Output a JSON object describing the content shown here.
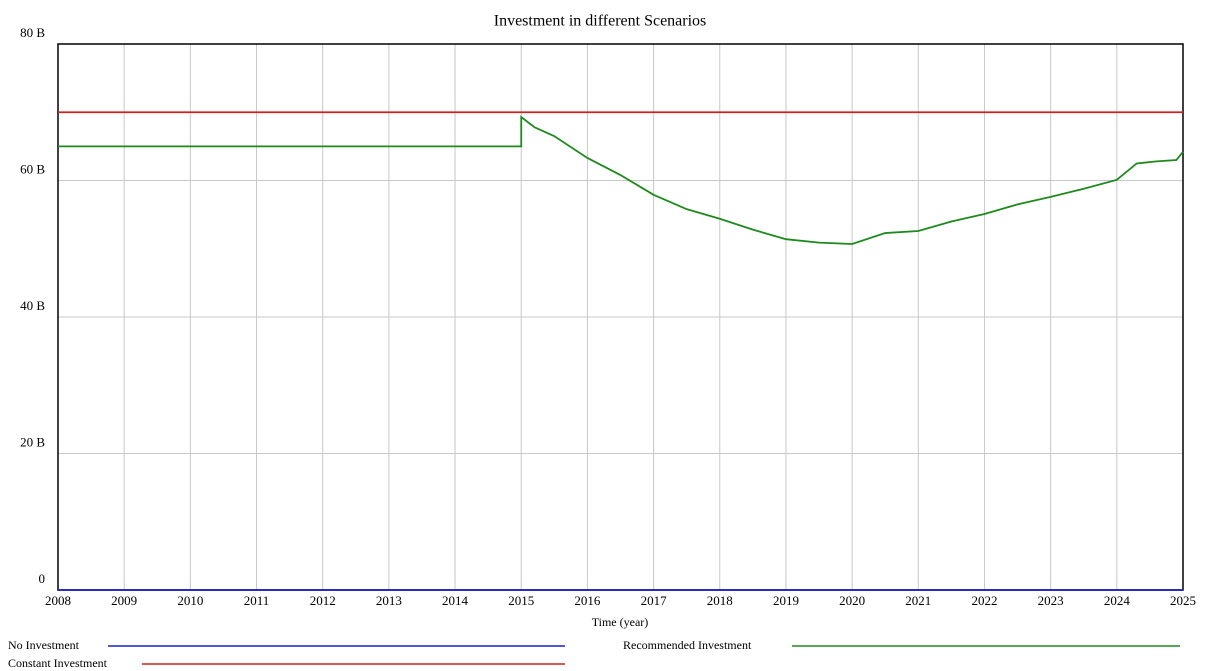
{
  "chart_data": {
    "type": "line",
    "title": "Investment in different Scenarios",
    "xlabel": "Time (year)",
    "xlim": [
      2008,
      2025
    ],
    "xticks": [
      2008,
      2009,
      2010,
      2011,
      2012,
      2013,
      2014,
      2015,
      2016,
      2017,
      2018,
      2019,
      2020,
      2021,
      2022,
      2023,
      2024,
      2025
    ],
    "ylim": [
      0,
      80
    ],
    "yticks": [
      0,
      {
        "value": 20,
        "label": "20 B"
      },
      {
        "value": 40,
        "label": "40 B"
      },
      {
        "value": 60,
        "label": "60 B"
      },
      {
        "value": 80,
        "label": "80 B"
      }
    ],
    "grid": true,
    "legend": "bottom",
    "series": [
      {
        "name": "No Investment",
        "color": "#1f1fd0",
        "x": [
          2008,
          2025
        ],
        "values": [
          0,
          0
        ]
      },
      {
        "name": "Constant Investment",
        "color": "#d01f1f",
        "x": [
          2008,
          2025
        ],
        "values": [
          70,
          70
        ]
      },
      {
        "name": "Recommended Investment",
        "color": "#1e8a1e",
        "x": [
          2008,
          2015,
          2015,
          2015.2,
          2015.5,
          2016,
          2016.5,
          2017,
          2017.5,
          2018,
          2018.5,
          2019,
          2019.5,
          2020,
          2020.5,
          2021,
          2021.5,
          2022,
          2022.5,
          2023,
          2023.5,
          2024,
          2024.3,
          2024.6,
          2024.9,
          2025
        ],
        "values": [
          65,
          65,
          69.3,
          67.8,
          66.5,
          63.3,
          60.8,
          57.9,
          55.8,
          54.4,
          52.8,
          51.4,
          50.9,
          50.7,
          52.3,
          52.6,
          54.0,
          55.1,
          56.5,
          57.6,
          58.8,
          60.1,
          62.5,
          62.8,
          63.0,
          64.2
        ]
      }
    ]
  }
}
